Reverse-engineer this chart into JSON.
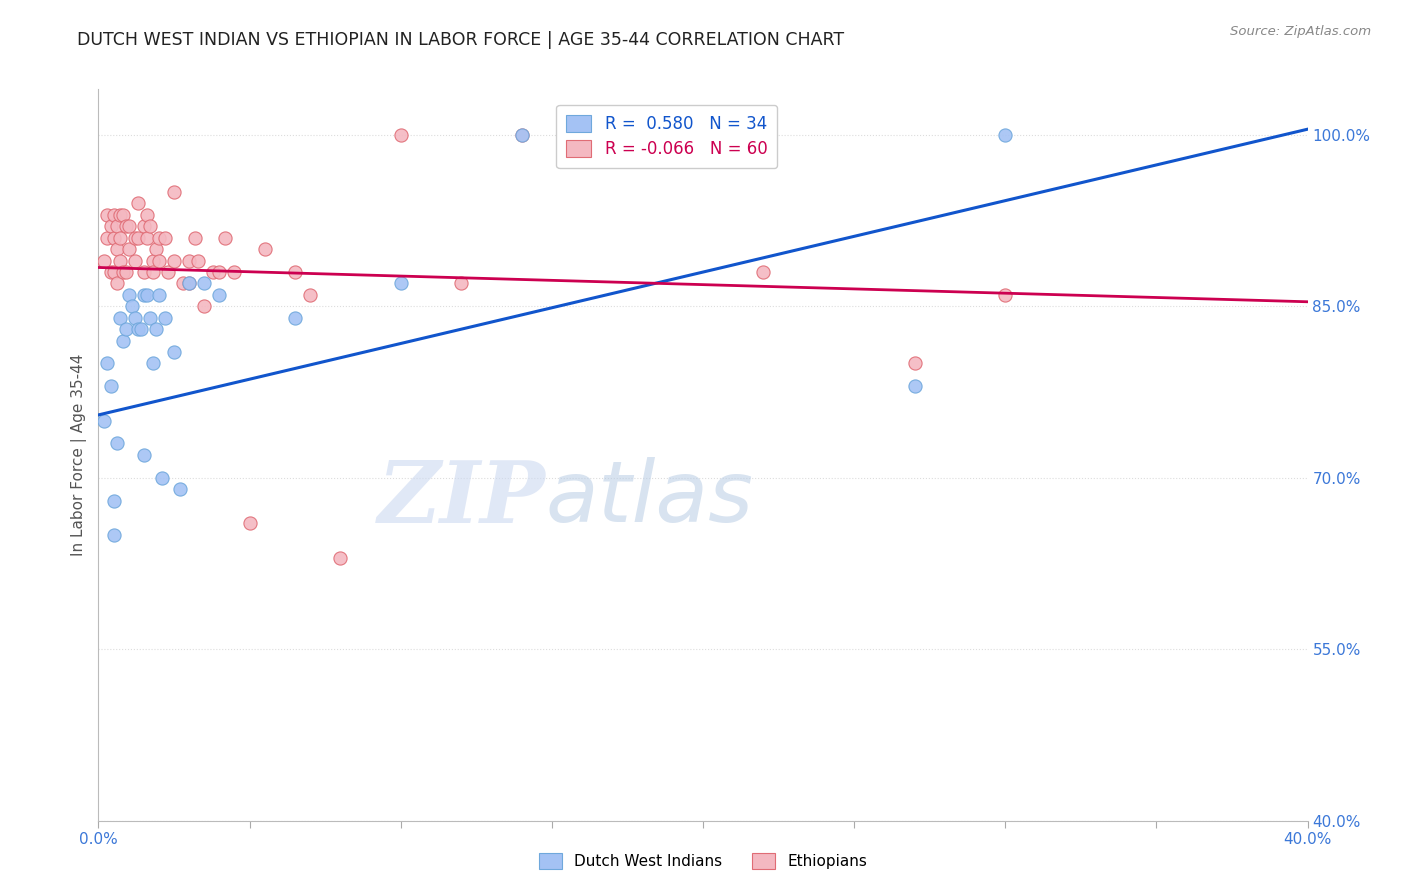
{
  "title": "DUTCH WEST INDIAN VS ETHIOPIAN IN LABOR FORCE | AGE 35-44 CORRELATION CHART",
  "source": "Source: ZipAtlas.com",
  "ylabel": "In Labor Force | Age 35-44",
  "xlim": [
    0.0,
    0.4
  ],
  "ylim": [
    0.4,
    1.04
  ],
  "xticks": [
    0.0,
    0.05,
    0.1,
    0.15,
    0.2,
    0.25,
    0.3,
    0.35,
    0.4
  ],
  "yticks": [
    0.4,
    0.55,
    0.7,
    0.85,
    1.0
  ],
  "ytick_labels": [
    "40.0%",
    "55.0%",
    "70.0%",
    "85.0%",
    "100.0%"
  ],
  "xtick_labels": [
    "0.0%",
    "",
    "",
    "",
    "",
    "",
    "",
    "",
    "40.0%"
  ],
  "blue_R": 0.58,
  "blue_N": 34,
  "pink_R": -0.066,
  "pink_N": 60,
  "blue_color": "#a4c2f4",
  "pink_color": "#f4b8c1",
  "blue_edge_color": "#6fa8dc",
  "pink_edge_color": "#e06c75",
  "blue_line_color": "#1155cc",
  "pink_line_color": "#cc0050",
  "legend_label_blue": "Dutch West Indians",
  "legend_label_pink": "Ethiopians",
  "watermark_zip": "ZIP",
  "watermark_atlas": "atlas",
  "background_color": "#ffffff",
  "title_color": "#222222",
  "axis_label_color": "#3c78d8",
  "grid_color": "#dddddd",
  "blue_scatter_x": [
    0.002,
    0.003,
    0.004,
    0.005,
    0.005,
    0.006,
    0.007,
    0.008,
    0.009,
    0.01,
    0.011,
    0.012,
    0.013,
    0.014,
    0.015,
    0.015,
    0.016,
    0.017,
    0.018,
    0.019,
    0.02,
    0.021,
    0.022,
    0.025,
    0.027,
    0.03,
    0.035,
    0.04,
    0.065,
    0.1,
    0.14,
    0.165,
    0.27,
    0.3
  ],
  "blue_scatter_y": [
    0.75,
    0.8,
    0.78,
    0.68,
    0.65,
    0.73,
    0.84,
    0.82,
    0.83,
    0.86,
    0.85,
    0.84,
    0.83,
    0.83,
    0.86,
    0.72,
    0.86,
    0.84,
    0.8,
    0.83,
    0.86,
    0.7,
    0.84,
    0.81,
    0.69,
    0.87,
    0.87,
    0.86,
    0.84,
    0.87,
    1.0,
    1.0,
    0.78,
    1.0
  ],
  "pink_scatter_x": [
    0.002,
    0.003,
    0.003,
    0.004,
    0.004,
    0.005,
    0.005,
    0.005,
    0.006,
    0.006,
    0.006,
    0.007,
    0.007,
    0.007,
    0.008,
    0.008,
    0.009,
    0.009,
    0.01,
    0.01,
    0.012,
    0.012,
    0.013,
    0.013,
    0.015,
    0.015,
    0.016,
    0.016,
    0.017,
    0.018,
    0.018,
    0.019,
    0.02,
    0.02,
    0.022,
    0.023,
    0.025,
    0.025,
    0.028,
    0.03,
    0.03,
    0.032,
    0.033,
    0.035,
    0.038,
    0.04,
    0.042,
    0.045,
    0.05,
    0.055,
    0.065,
    0.07,
    0.08,
    0.1,
    0.12,
    0.14,
    0.165,
    0.22,
    0.27,
    0.3
  ],
  "pink_scatter_y": [
    0.89,
    0.93,
    0.91,
    0.92,
    0.88,
    0.93,
    0.91,
    0.88,
    0.92,
    0.9,
    0.87,
    0.93,
    0.91,
    0.89,
    0.93,
    0.88,
    0.92,
    0.88,
    0.92,
    0.9,
    0.91,
    0.89,
    0.94,
    0.91,
    0.92,
    0.88,
    0.91,
    0.93,
    0.92,
    0.89,
    0.88,
    0.9,
    0.91,
    0.89,
    0.91,
    0.88,
    0.89,
    0.95,
    0.87,
    0.89,
    0.87,
    0.91,
    0.89,
    0.85,
    0.88,
    0.88,
    0.91,
    0.88,
    0.66,
    0.9,
    0.88,
    0.86,
    0.63,
    1.0,
    0.87,
    1.0,
    1.0,
    0.88,
    0.8,
    0.86
  ],
  "blue_trendline_x": [
    0.0,
    0.4
  ],
  "blue_trendline_y": [
    0.755,
    1.005
  ],
  "pink_trendline_x": [
    0.0,
    0.4
  ],
  "pink_trendline_y": [
    0.884,
    0.854
  ]
}
